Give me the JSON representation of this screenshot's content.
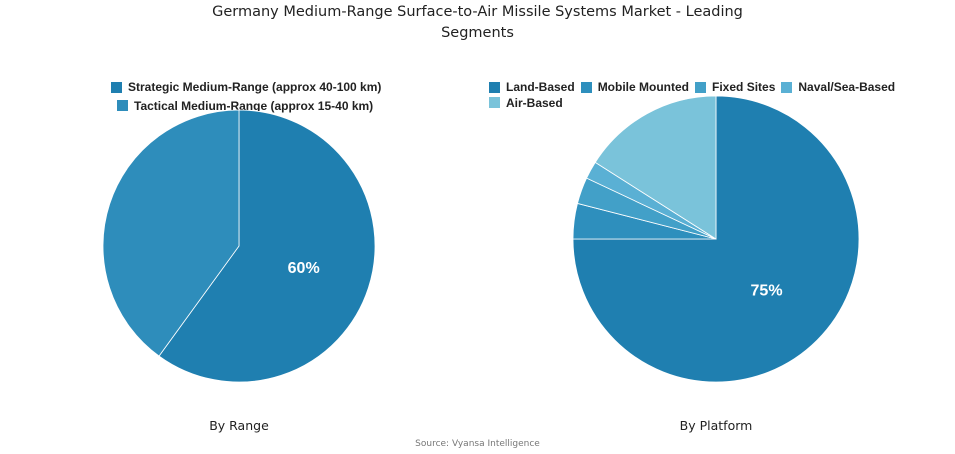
{
  "chart_data": [
    {
      "type": "pie",
      "subtitle": "By Range",
      "categories": [
        "Strategic Medium-Range (approx 40-100 km)",
        "Tactical Medium-Range (approx 15-40 km)"
      ],
      "values": [
        60,
        40
      ],
      "colors": [
        "#1f7fb0",
        "#2e8dbb"
      ],
      "data_labels": [
        "60%",
        ""
      ],
      "legend_position": "top"
    },
    {
      "type": "pie",
      "subtitle": "By Platform",
      "categories": [
        "Land-Based",
        "Mobile Mounted",
        "Fixed Sites",
        "Naval/Sea-Based",
        "Air-Based"
      ],
      "values": [
        75,
        4,
        3,
        2,
        16
      ],
      "colors": [
        "#1f7fb0",
        "#2e8fbd",
        "#42a0c8",
        "#5ab0d4",
        "#7ac3da"
      ],
      "data_labels": [
        "75%",
        "",
        "",
        "",
        ""
      ],
      "legend_position": "top"
    }
  ],
  "title": "Germany Medium-Range Surface-to-Air Missile Systems Market - Leading Segments",
  "title_line1": "Germany Medium-Range Surface-to-Air Missile Systems Market - Leading",
  "title_line2": "Segments",
  "source": "Source: Vyansa Intelligence"
}
